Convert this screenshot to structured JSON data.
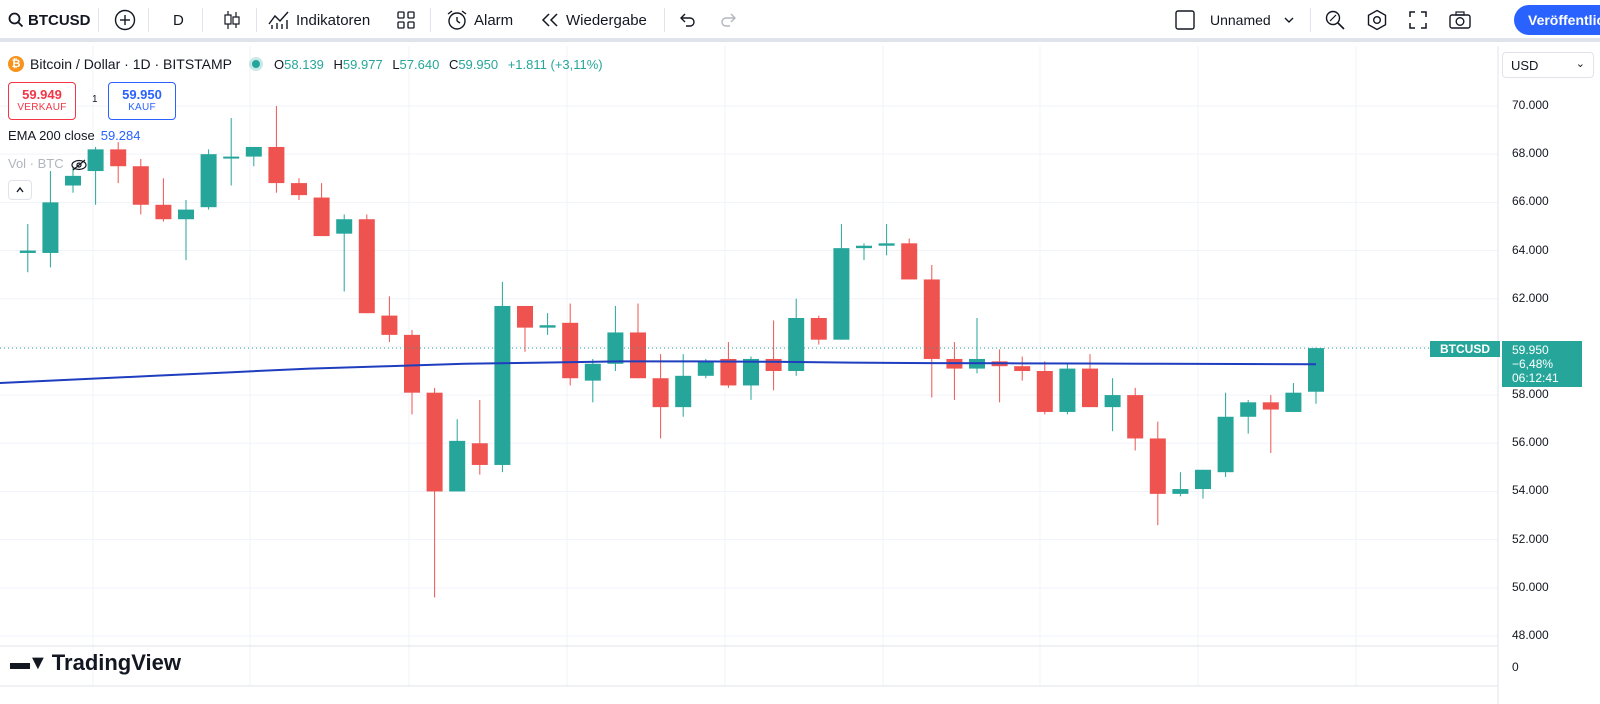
{
  "toolbar": {
    "symbol": "BTCUSD",
    "interval": "D",
    "indicators_label": "Indikatoren",
    "alert_label": "Alarm",
    "replay_label": "Wiedergabe",
    "layout_name": "Unnamed",
    "publish_label": "Veröffentlichen"
  },
  "legend": {
    "title": "Bitcoin / Dollar · 1D · BITSTAMP",
    "open_label": "O",
    "open": "58.139",
    "high_label": "H",
    "high": "59.977",
    "low_label": "L",
    "low": "57.640",
    "close_label": "C",
    "close": "59.950",
    "change": "+1.811 (+3,11%)",
    "sell_price": "59.949",
    "sell_label": "VERKAUF",
    "spread": "1",
    "buy_price": "59.950",
    "buy_label": "KAUF",
    "ema_label": "EMA 200 close",
    "ema_value": "59.284",
    "vol_label": "Vol · BTC"
  },
  "price_scale": {
    "currency": "USD",
    "ticks": [
      "70.000",
      "68.000",
      "66.000",
      "64.000",
      "62.000",
      "60.000",
      "58.000",
      "56.000",
      "54.000",
      "52.000",
      "50.000",
      "48.000"
    ],
    "volume_tick": "0",
    "current_symbol": "BTCUSD",
    "current_price": "59.950",
    "current_change": "−6,48%",
    "countdown": "06:12:41"
  },
  "colors": {
    "up": "#26a69a",
    "down": "#ef5350",
    "ema": "#1e3dbf",
    "accent": "#2962ff"
  },
  "branding": {
    "logo_text": "TradingView"
  },
  "chart_data": {
    "type": "candlestick",
    "title": "Bitcoin / Dollar · 1D · BITSTAMP",
    "ylim": [
      47500,
      71000
    ],
    "candles": [
      {
        "o": 63900,
        "h": 65100,
        "l": 63100,
        "c": 64000
      },
      {
        "o": 63900,
        "h": 67300,
        "l": 63300,
        "c": 66000
      },
      {
        "o": 66700,
        "h": 67500,
        "l": 66400,
        "c": 67100
      },
      {
        "o": 67300,
        "h": 68300,
        "l": 65900,
        "c": 68200
      },
      {
        "o": 68200,
        "h": 68500,
        "l": 66800,
        "c": 67500
      },
      {
        "o": 67500,
        "h": 67800,
        "l": 65500,
        "c": 65900
      },
      {
        "o": 65900,
        "h": 67000,
        "l": 65200,
        "c": 65300
      },
      {
        "o": 65300,
        "h": 66100,
        "l": 63600,
        "c": 65700
      },
      {
        "o": 65800,
        "h": 68200,
        "l": 65700,
        "c": 68000
      },
      {
        "o": 67900,
        "h": 69500,
        "l": 66700,
        "c": 67900
      },
      {
        "o": 67900,
        "h": 68300,
        "l": 67500,
        "c": 68300
      },
      {
        "o": 68300,
        "h": 70000,
        "l": 66400,
        "c": 66800
      },
      {
        "o": 66800,
        "h": 67000,
        "l": 66100,
        "c": 66300
      },
      {
        "o": 66200,
        "h": 66800,
        "l": 64600,
        "c": 64600
      },
      {
        "o": 64700,
        "h": 65500,
        "l": 62300,
        "c": 65300
      },
      {
        "o": 65300,
        "h": 65500,
        "l": 61400,
        "c": 61400
      },
      {
        "o": 61300,
        "h": 62100,
        "l": 60200,
        "c": 60500
      },
      {
        "o": 60500,
        "h": 60700,
        "l": 57200,
        "c": 58100
      },
      {
        "o": 58100,
        "h": 58300,
        "l": 49600,
        "c": 54000
      },
      {
        "o": 54000,
        "h": 57000,
        "l": 54000,
        "c": 56100
      },
      {
        "o": 56000,
        "h": 57800,
        "l": 54700,
        "c": 55100
      },
      {
        "o": 55100,
        "h": 62700,
        "l": 54800,
        "c": 61700
      },
      {
        "o": 61700,
        "h": 61700,
        "l": 59800,
        "c": 60800
      },
      {
        "o": 60800,
        "h": 61400,
        "l": 60500,
        "c": 60900
      },
      {
        "o": 61000,
        "h": 61800,
        "l": 58400,
        "c": 58700
      },
      {
        "o": 58600,
        "h": 59500,
        "l": 57700,
        "c": 59300
      },
      {
        "o": 59300,
        "h": 61700,
        "l": 59000,
        "c": 60600
      },
      {
        "o": 60600,
        "h": 61800,
        "l": 58700,
        "c": 58700
      },
      {
        "o": 58700,
        "h": 59700,
        "l": 56200,
        "c": 57500
      },
      {
        "o": 57500,
        "h": 59700,
        "l": 57100,
        "c": 58800
      },
      {
        "o": 58800,
        "h": 59500,
        "l": 58700,
        "c": 59400
      },
      {
        "o": 59500,
        "h": 60200,
        "l": 58300,
        "c": 58400
      },
      {
        "o": 58400,
        "h": 59600,
        "l": 57800,
        "c": 59500
      },
      {
        "o": 59500,
        "h": 61100,
        "l": 58200,
        "c": 59000
      },
      {
        "o": 59000,
        "h": 62000,
        "l": 58800,
        "c": 61200
      },
      {
        "o": 61200,
        "h": 61300,
        "l": 60100,
        "c": 60300
      },
      {
        "o": 60300,
        "h": 65100,
        "l": 60300,
        "c": 64100
      },
      {
        "o": 64100,
        "h": 64300,
        "l": 63600,
        "c": 64200
      },
      {
        "o": 64200,
        "h": 65100,
        "l": 63800,
        "c": 64300
      },
      {
        "o": 64300,
        "h": 64500,
        "l": 62800,
        "c": 62800
      },
      {
        "o": 62800,
        "h": 63400,
        "l": 57900,
        "c": 59500
      },
      {
        "o": 59500,
        "h": 60200,
        "l": 57800,
        "c": 59100
      },
      {
        "o": 59100,
        "h": 61200,
        "l": 58900,
        "c": 59500
      },
      {
        "o": 59400,
        "h": 59900,
        "l": 57700,
        "c": 59200
      },
      {
        "o": 59200,
        "h": 59600,
        "l": 58600,
        "c": 59000
      },
      {
        "o": 59000,
        "h": 59400,
        "l": 57200,
        "c": 57300
      },
      {
        "o": 57300,
        "h": 59300,
        "l": 57200,
        "c": 59100
      },
      {
        "o": 59100,
        "h": 59700,
        "l": 57500,
        "c": 57500
      },
      {
        "o": 57500,
        "h": 58700,
        "l": 56500,
        "c": 58000
      },
      {
        "o": 58000,
        "h": 58300,
        "l": 55700,
        "c": 56200
      },
      {
        "o": 56200,
        "h": 56900,
        "l": 52600,
        "c": 53900
      },
      {
        "o": 53900,
        "h": 54800,
        "l": 53800,
        "c": 54100
      },
      {
        "o": 54100,
        "h": 54900,
        "l": 53700,
        "c": 54900
      },
      {
        "o": 54800,
        "h": 58100,
        "l": 54600,
        "c": 57100
      },
      {
        "o": 57100,
        "h": 57800,
        "l": 56400,
        "c": 57700
      },
      {
        "o": 57700,
        "h": 58000,
        "l": 55600,
        "c": 57400
      },
      {
        "o": 57300,
        "h": 58500,
        "l": 57300,
        "c": 58100
      },
      {
        "o": 58139,
        "h": 59977,
        "l": 57640,
        "c": 59950
      }
    ],
    "ema200": [
      58500,
      58650,
      58800,
      58950,
      59100,
      59200,
      59300,
      59350,
      59400,
      59400,
      59380,
      59350,
      59330,
      59320,
      59310,
      59300,
      59290,
      59284
    ]
  }
}
